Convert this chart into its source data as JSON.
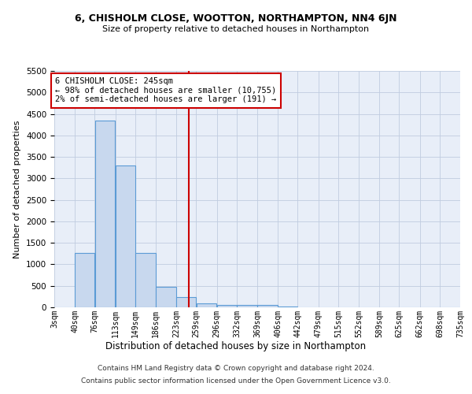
{
  "title": "6, CHISHOLM CLOSE, WOOTTON, NORTHAMPTON, NN4 6JN",
  "subtitle": "Size of property relative to detached houses in Northampton",
  "xlabel": "Distribution of detached houses by size in Northampton",
  "ylabel": "Number of detached properties",
  "footer_line1": "Contains HM Land Registry data © Crown copyright and database right 2024.",
  "footer_line2": "Contains public sector information licensed under the Open Government Licence v3.0.",
  "property_size": 245,
  "property_label": "6 CHISHOLM CLOSE: 245sqm",
  "annotation_line1": "← 98% of detached houses are smaller (10,755)",
  "annotation_line2": "2% of semi-detached houses are larger (191) →",
  "bin_edges": [
    3,
    40,
    76,
    113,
    149,
    186,
    223,
    259,
    296,
    332,
    369,
    406,
    442,
    479,
    515,
    552,
    589,
    625,
    662,
    698,
    735
  ],
  "bin_counts": [
    0,
    1260,
    4350,
    3300,
    1260,
    480,
    230,
    100,
    60,
    55,
    55,
    20,
    0,
    0,
    0,
    0,
    0,
    0,
    0,
    0
  ],
  "bar_color": "#c8d8ee",
  "bar_edge_color": "#5b9bd5",
  "vline_color": "#cc0000",
  "annotation_box_color": "#cc0000",
  "background_color": "#e8eef8",
  "grid_color": "#c0cce0",
  "ylim_max": 5500,
  "yticks": [
    0,
    500,
    1000,
    1500,
    2000,
    2500,
    3000,
    3500,
    4000,
    4500,
    5000,
    5500
  ]
}
